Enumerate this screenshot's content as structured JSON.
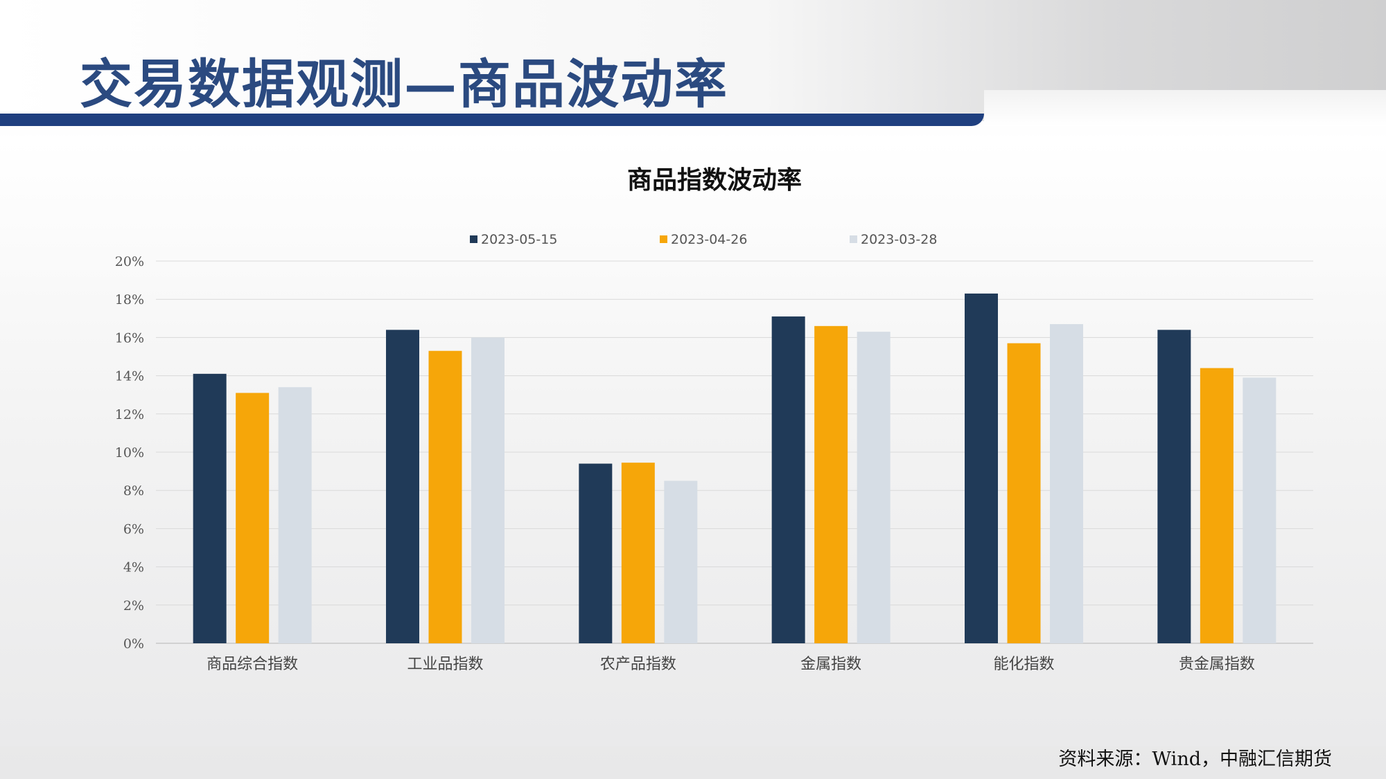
{
  "page": {
    "title": "交易数据观测—商品波动率",
    "source": "资料来源：Wind，中融汇信期货"
  },
  "chart_data": {
    "type": "bar",
    "title": "商品指数波动率",
    "categories": [
      "商品综合指数",
      "工业品指数",
      "农产品指数",
      "金属指数",
      "能化指数",
      "贵金属指数"
    ],
    "series": [
      {
        "name": "2023-05-15",
        "color": "#203a58",
        "values": [
          14.1,
          16.4,
          9.4,
          17.1,
          18.3,
          16.4
        ]
      },
      {
        "name": "2023-04-26",
        "color": "#f6a609",
        "values": [
          13.1,
          15.3,
          9.45,
          16.6,
          15.7,
          14.4
        ]
      },
      {
        "name": "2023-03-28",
        "color": "#d6dde5",
        "values": [
          13.4,
          16.0,
          8.5,
          16.3,
          16.7,
          13.9
        ]
      }
    ],
    "ylim": [
      0,
      20
    ],
    "y_ticks": [
      "0%",
      "2%",
      "4%",
      "6%",
      "8%",
      "10%",
      "12%",
      "14%",
      "16%",
      "18%",
      "20%"
    ],
    "y_unit": "%",
    "grid": true,
    "legend_position": "top-center"
  }
}
